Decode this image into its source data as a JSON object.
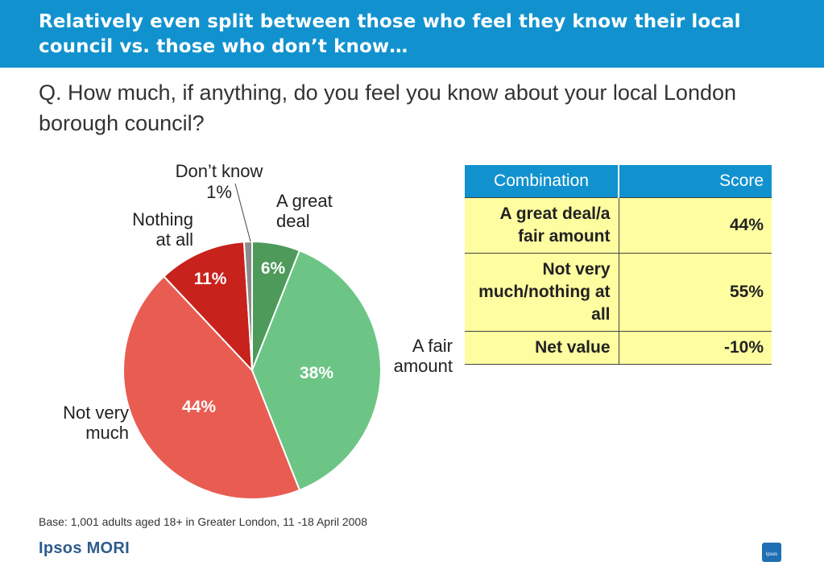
{
  "header": {
    "title": "Relatively even split between those who feel they know their local council vs. those who don’t know…"
  },
  "question": "Q. How much, if anything, do you feel you know about your local London borough council?",
  "chart_data": {
    "type": "pie",
    "start": "top, clockwise",
    "slices": [
      {
        "label": [
          "A great",
          "deal"
        ],
        "value": 6,
        "display": "6%",
        "color": "#4d9a5a"
      },
      {
        "label": [
          "A fair",
          "amount"
        ],
        "value": 38,
        "display": "38%",
        "color": "#6cc585"
      },
      {
        "label": [
          "Not very",
          "much"
        ],
        "value": 44,
        "display": "44%",
        "color": "#e85c52"
      },
      {
        "label": [
          "Nothing",
          "at all"
        ],
        "value": 11,
        "display": "11%",
        "color": "#c7221c"
      },
      {
        "label": [
          "Don’t know"
        ],
        "value": 1,
        "display": "1%",
        "color": "#8c8c8c"
      }
    ]
  },
  "table": {
    "headers": [
      "Combination",
      "Score"
    ],
    "rows": [
      {
        "combination": "A great deal/a fair amount",
        "score": "44%"
      },
      {
        "combination": "Not very much/nothing at all",
        "score": "55%"
      },
      {
        "combination": "Net value",
        "score": "-10%"
      }
    ]
  },
  "footer": {
    "base_note": "Base: 1,001 adults aged 18+ in Greater London, 11 -18 April 2008",
    "logo": "Ipsos MORI",
    "badge": "Ipsos"
  }
}
